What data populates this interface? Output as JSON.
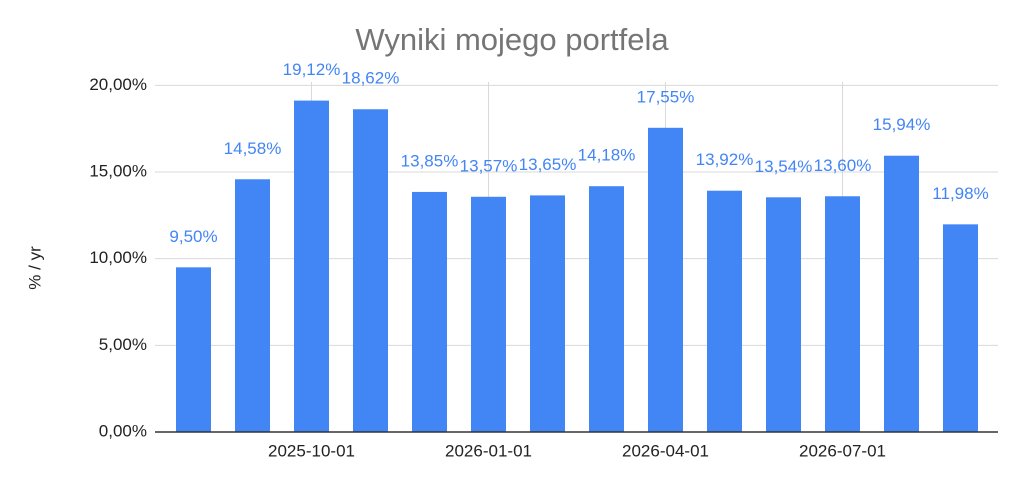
{
  "chart_data": {
    "type": "bar",
    "title": "Wyniki mojego portfela",
    "y_label": "% / yr",
    "categories": [
      null,
      null,
      "2025-10-01",
      null,
      null,
      "2026-01-01",
      null,
      null,
      "2026-04-01",
      null,
      null,
      "2026-07-01",
      null,
      null
    ],
    "values": [
      9.5,
      14.58,
      19.12,
      18.62,
      13.85,
      13.57,
      13.65,
      14.18,
      17.55,
      13.92,
      13.54,
      13.6,
      15.94,
      11.98
    ],
    "value_labels": [
      "9,50%",
      "14,58%",
      "19,12%",
      "18,62%",
      "13,85%",
      "13,57%",
      "13,65%",
      "14,18%",
      "17,55%",
      "13,92%",
      "13,54%",
      "13,60%",
      "15,94%",
      "11,98%"
    ],
    "color": "#4285f4",
    "ylim": [
      0,
      21
    ],
    "yticks": [
      {
        "value": 0,
        "label": "0,00%"
      },
      {
        "value": 5,
        "label": "5,00%"
      },
      {
        "value": 10,
        "label": "10,00%"
      },
      {
        "value": 15,
        "label": "15,00%"
      },
      {
        "value": 20,
        "label": "20,00%"
      }
    ],
    "grid": true
  }
}
